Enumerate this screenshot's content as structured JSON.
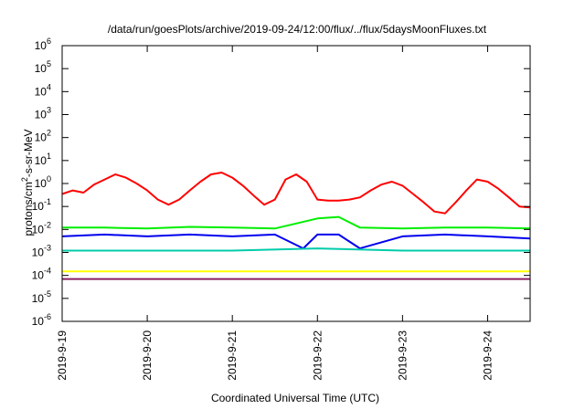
{
  "chart_data": {
    "type": "line",
    "title": "/data/run/goesPlots/archive/2019-09-24/12:00/flux/../flux/5daysMoonFluxes.txt",
    "xlabel": "Coordinated Universal Time (UTC)",
    "ylabel": "protons/cm2-s-sr-MeV",
    "ylabel_parts": {
      "pre": "protons/cm",
      "sup": "2",
      "post": "-s-sr-MeV"
    },
    "y_scale": "log",
    "ylim": [
      1e-06,
      1000000.0
    ],
    "y_ticks": [
      {
        "exp": -6,
        "base": "10",
        "sup": "-6"
      },
      {
        "exp": -5,
        "base": "10",
        "sup": "-5"
      },
      {
        "exp": -4,
        "base": "10",
        "sup": "-4"
      },
      {
        "exp": -3,
        "base": "10",
        "sup": "-3"
      },
      {
        "exp": -2,
        "base": "10",
        "sup": "-2"
      },
      {
        "exp": -1,
        "base": "10",
        "sup": "-1"
      },
      {
        "exp": 0,
        "base": "10",
        "sup": "0"
      },
      {
        "exp": 1,
        "base": "10",
        "sup": "1"
      },
      {
        "exp": 2,
        "base": "10",
        "sup": "2"
      },
      {
        "exp": 3,
        "base": "10",
        "sup": "3"
      },
      {
        "exp": 4,
        "base": "10",
        "sup": "4"
      },
      {
        "exp": 5,
        "base": "10",
        "sup": "5"
      },
      {
        "exp": 6,
        "base": "10",
        "sup": "6"
      }
    ],
    "xlim": [
      "2019-09-19T00:00",
      "2019-09-24T12:00"
    ],
    "x_ticks": [
      "2019-9-19",
      "2019-9-20",
      "2019-9-21",
      "2019-9-22",
      "2019-9-23",
      "2019-9-24"
    ],
    "grid": false,
    "legend": "none",
    "series": [
      {
        "color": "#ff0000",
        "x": [
          "2019-09-19T00:00",
          "2019-09-19T03:00",
          "2019-09-19T06:00",
          "2019-09-19T09:00",
          "2019-09-19T12:00",
          "2019-09-19T15:00",
          "2019-09-19T18:00",
          "2019-09-19T21:00",
          "2019-09-20T00:00",
          "2019-09-20T03:00",
          "2019-09-20T06:00",
          "2019-09-20T09:00",
          "2019-09-20T12:00",
          "2019-09-20T15:00",
          "2019-09-20T18:00",
          "2019-09-20T21:00",
          "2019-09-21T00:00",
          "2019-09-21T03:00",
          "2019-09-21T06:00",
          "2019-09-21T09:00",
          "2019-09-21T12:00",
          "2019-09-21T15:00",
          "2019-09-21T18:00",
          "2019-09-21T21:00",
          "2019-09-22T00:00",
          "2019-09-22T03:00",
          "2019-09-22T06:00",
          "2019-09-22T09:00",
          "2019-09-22T12:00",
          "2019-09-22T15:00",
          "2019-09-22T18:00",
          "2019-09-22T21:00",
          "2019-09-23T00:00",
          "2019-09-23T03:00",
          "2019-09-23T06:00",
          "2019-09-23T09:00",
          "2019-09-23T12:00",
          "2019-09-23T15:00",
          "2019-09-23T18:00",
          "2019-09-23T21:00",
          "2019-09-24T00:00",
          "2019-09-24T03:00",
          "2019-09-24T06:00",
          "2019-09-24T09:00",
          "2019-09-24T12:00"
        ],
        "y": [
          0.35,
          0.5,
          0.4,
          0.9,
          1.5,
          2.5,
          1.8,
          1.0,
          0.5,
          0.2,
          0.12,
          0.2,
          0.5,
          1.2,
          2.5,
          3.0,
          1.8,
          0.8,
          0.3,
          0.12,
          0.2,
          1.5,
          2.5,
          1.2,
          0.2,
          0.18,
          0.18,
          0.2,
          0.25,
          0.5,
          0.9,
          1.2,
          0.8,
          0.35,
          0.15,
          0.06,
          0.05,
          0.15,
          0.5,
          1.5,
          1.2,
          0.6,
          0.25,
          0.1,
          0.09
        ]
      },
      {
        "color": "#00ee00",
        "x": [
          "2019-09-19T00:00",
          "2019-09-19T12:00",
          "2019-09-20T00:00",
          "2019-09-20T12:00",
          "2019-09-21T00:00",
          "2019-09-21T12:00",
          "2019-09-22T00:00",
          "2019-09-22T06:00",
          "2019-09-22T12:00",
          "2019-09-23T00:00",
          "2019-09-23T12:00",
          "2019-09-24T00:00",
          "2019-09-24T12:00"
        ],
        "y": [
          0.012,
          0.012,
          0.011,
          0.013,
          0.012,
          0.011,
          0.03,
          0.035,
          0.012,
          0.011,
          0.012,
          0.012,
          0.011
        ]
      },
      {
        "color": "#0000ee",
        "x": [
          "2019-09-19T00:00",
          "2019-09-19T12:00",
          "2019-09-20T00:00",
          "2019-09-20T12:00",
          "2019-09-21T00:00",
          "2019-09-21T12:00",
          "2019-09-21T20:00",
          "2019-09-22T00:00",
          "2019-09-22T06:00",
          "2019-09-22T12:00",
          "2019-09-23T00:00",
          "2019-09-23T12:00",
          "2019-09-24T00:00",
          "2019-09-24T12:00"
        ],
        "y": [
          0.005,
          0.006,
          0.005,
          0.006,
          0.005,
          0.006,
          0.0015,
          0.006,
          0.006,
          0.0015,
          0.005,
          0.006,
          0.005,
          0.004
        ]
      },
      {
        "color": "#00ccaa",
        "x": [
          "2019-09-19T00:00",
          "2019-09-20T00:00",
          "2019-09-21T00:00",
          "2019-09-22T00:00",
          "2019-09-23T00:00",
          "2019-09-24T00:00",
          "2019-09-24T12:00"
        ],
        "y": [
          0.0012,
          0.0012,
          0.0012,
          0.0015,
          0.0012,
          0.0012,
          0.0012
        ]
      },
      {
        "color": "#ffff00",
        "x": [
          "2019-09-19T00:00",
          "2019-09-20T00:00",
          "2019-09-21T00:00",
          "2019-09-22T00:00",
          "2019-09-23T00:00",
          "2019-09-24T00:00",
          "2019-09-24T12:00"
        ],
        "y": [
          0.00015,
          0.00015,
          0.00015,
          0.00015,
          0.00015,
          0.00015,
          0.00015
        ]
      },
      {
        "color": "#8b2060",
        "x": [
          "2019-09-19T00:00",
          "2019-09-20T00:00",
          "2019-09-21T00:00",
          "2019-09-22T00:00",
          "2019-09-23T00:00",
          "2019-09-24T00:00",
          "2019-09-24T12:00"
        ],
        "y": [
          7e-05,
          7e-05,
          7e-05,
          7e-05,
          7e-05,
          7e-05,
          7e-05
        ]
      }
    ]
  }
}
